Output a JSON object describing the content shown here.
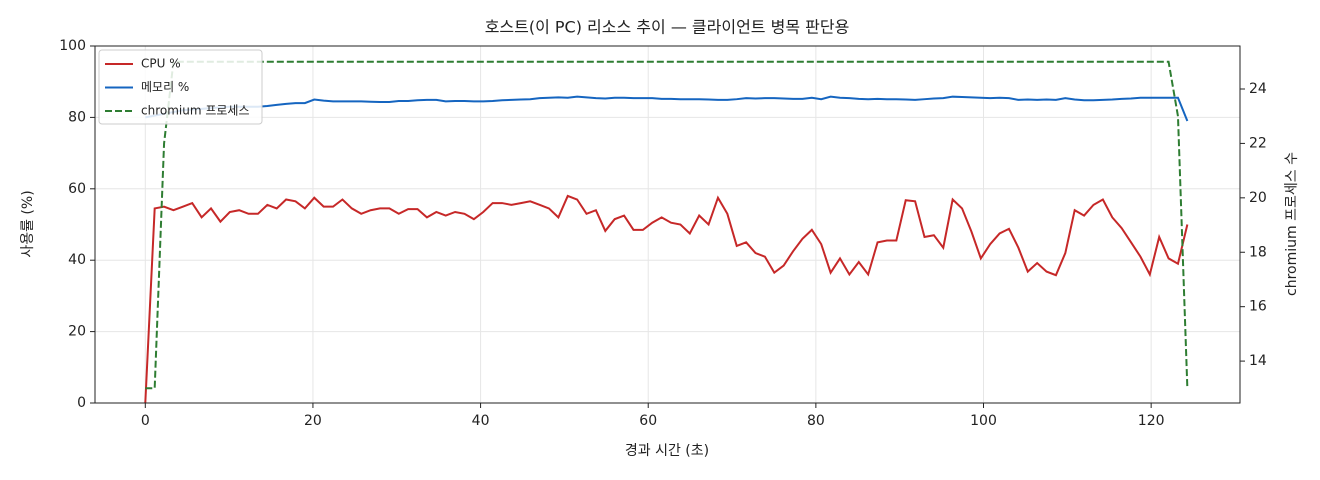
{
  "chart_data": {
    "type": "line",
    "title": "호스트(이 PC) 리소스 추이 — 클라이언트 병목 판단용",
    "x_label": "경과 시간 (초)",
    "y_label": "사용률 (%)",
    "y2_label": "chromium 프로세스 수",
    "x": [
      0,
      1.12,
      2.24,
      3.36,
      4.48,
      5.6,
      6.72,
      7.84,
      8.96,
      10.08,
      11.2,
      12.32,
      13.44,
      14.56,
      15.68,
      16.8,
      17.92,
      19.04,
      20.16,
      21.28,
      22.4,
      23.52,
      24.64,
      25.76,
      26.88,
      28,
      29.12,
      30.24,
      31.36,
      32.48,
      33.6,
      34.72,
      35.84,
      36.96,
      38.08,
      39.2,
      40.32,
      41.44,
      42.56,
      43.68,
      44.8,
      45.92,
      47.04,
      48.16,
      49.28,
      50.4,
      51.52,
      52.64,
      53.76,
      54.88,
      56,
      57.12,
      58.24,
      59.36,
      60.48,
      61.6,
      62.72,
      63.84,
      64.96,
      66.08,
      67.2,
      68.32,
      69.44,
      70.56,
      71.68,
      72.8,
      73.92,
      75.04,
      76.16,
      77.28,
      78.4,
      79.52,
      80.64,
      81.76,
      82.88,
      84,
      85.12,
      86.24,
      87.36,
      88.48,
      89.6,
      90.72,
      91.84,
      92.96,
      94.08,
      95.2,
      96.32,
      97.44,
      98.56,
      99.68,
      100.8,
      101.92,
      103.04,
      104.16,
      105.28,
      106.4,
      107.52,
      108.64,
      109.76,
      110.88,
      112,
      113.12,
      114.24,
      115.36,
      116.48,
      117.6,
      118.72,
      119.84,
      120.96,
      122.08,
      123.2,
      124.32
    ],
    "series": [
      {
        "name": "CPU %",
        "color": "#c62828",
        "linestyle": "solid",
        "values": [
          0,
          54.5,
          55,
          54,
          55,
          56,
          52,
          54.5,
          50.8,
          53.5,
          54,
          53,
          53,
          55.5,
          54.5,
          57,
          56.5,
          54.5,
          57.5,
          55,
          55,
          57,
          54.5,
          53,
          54,
          54.5,
          54.5,
          53,
          54.3,
          54.3,
          52,
          53.5,
          52.5,
          53.5,
          53,
          51.5,
          53.5,
          56,
          56,
          55.5,
          56,
          56.5,
          55.5,
          54.5,
          52,
          58,
          57,
          53,
          54,
          48.2,
          51.5,
          52.5,
          48.5,
          48.5,
          50.5,
          52,
          50.5,
          50,
          47.5,
          52.5,
          50,
          57.5,
          53,
          44,
          45,
          42,
          41,
          36.5,
          38.5,
          42.5,
          46,
          48.5,
          44.5,
          36.5,
          40.5,
          36,
          39.5,
          36,
          45,
          45.5,
          45.5,
          56.8,
          56.5,
          46.5,
          47,
          43.5,
          57,
          54.5,
          48,
          40.5,
          44.5,
          47.5,
          48.8,
          43.5,
          36.8,
          39.2,
          36.8,
          35.8,
          42,
          54,
          52.5,
          55.5,
          57,
          52,
          49,
          45,
          41,
          36,
          46.5,
          40.5,
          39,
          50
        ]
      },
      {
        "name": "메모리 %",
        "color": "#1565c0",
        "linestyle": "solid",
        "values": [
          80,
          80.5,
          81,
          81.5,
          82,
          82.2,
          82.4,
          82.6,
          82.8,
          83,
          83,
          83,
          83,
          83.2,
          83.5,
          83.8,
          84,
          84,
          85,
          84.7,
          84.5,
          84.5,
          84.5,
          84.5,
          84.4,
          84.3,
          84.3,
          84.6,
          84.6,
          84.8,
          84.9,
          84.9,
          84.5,
          84.6,
          84.6,
          84.5,
          84.5,
          84.6,
          84.8,
          84.9,
          85,
          85.1,
          85.4,
          85.5,
          85.6,
          85.5,
          85.8,
          85.6,
          85.4,
          85.3,
          85.5,
          85.5,
          85.4,
          85.4,
          85.4,
          85.2,
          85.2,
          85.1,
          85.1,
          85.1,
          85,
          84.9,
          84.9,
          85.1,
          85.4,
          85.3,
          85.4,
          85.4,
          85.3,
          85.2,
          85.2,
          85.5,
          85.1,
          85.8,
          85.5,
          85.4,
          85.2,
          85.1,
          85.2,
          85.1,
          85.1,
          85,
          84.9,
          85.1,
          85.3,
          85.4,
          85.8,
          85.7,
          85.6,
          85.5,
          85.4,
          85.5,
          85.4,
          84.9,
          85,
          84.9,
          85,
          84.9,
          85.4,
          85,
          84.8,
          84.8,
          84.9,
          85,
          85.2,
          85.3,
          85.5,
          85.5,
          85.5,
          85.5,
          85.5,
          79
        ]
      },
      {
        "name": "chromium 프로세스",
        "color": "#2e7d32",
        "linestyle": "dashed",
        "axis": "y2",
        "values": [
          13,
          13,
          22,
          25,
          25,
          25,
          25,
          25,
          25,
          25,
          25,
          25,
          25,
          25,
          25,
          25,
          25,
          25,
          25,
          25,
          25,
          25,
          25,
          25,
          25,
          25,
          25,
          25,
          25,
          25,
          25,
          25,
          25,
          25,
          25,
          25,
          25,
          25,
          25,
          25,
          25,
          25,
          25,
          25,
          25,
          25,
          25,
          25,
          25,
          25,
          25,
          25,
          25,
          25,
          25,
          25,
          25,
          25,
          25,
          25,
          25,
          25,
          25,
          25,
          25,
          25,
          25,
          25,
          25,
          25,
          25,
          25,
          25,
          25,
          25,
          25,
          25,
          25,
          25,
          25,
          25,
          25,
          25,
          25,
          25,
          25,
          25,
          25,
          25,
          25,
          25,
          25,
          25,
          25,
          25,
          25,
          25,
          25,
          25,
          25,
          25,
          25,
          25,
          25,
          25,
          25,
          25,
          25,
          25,
          25,
          23,
          13
        ]
      }
    ],
    "xlim": [
      -6,
      130.6
    ],
    "xticks": [
      0,
      20,
      40,
      60,
      80,
      100,
      120
    ],
    "ylim": [
      0,
      100
    ],
    "yticks": [
      0,
      20,
      40,
      60,
      80,
      100
    ],
    "y2lim": [
      12.46,
      25.58
    ],
    "y2ticks": [
      14,
      16,
      18,
      20,
      22,
      24
    ],
    "grid": true,
    "legend": "upper left"
  }
}
